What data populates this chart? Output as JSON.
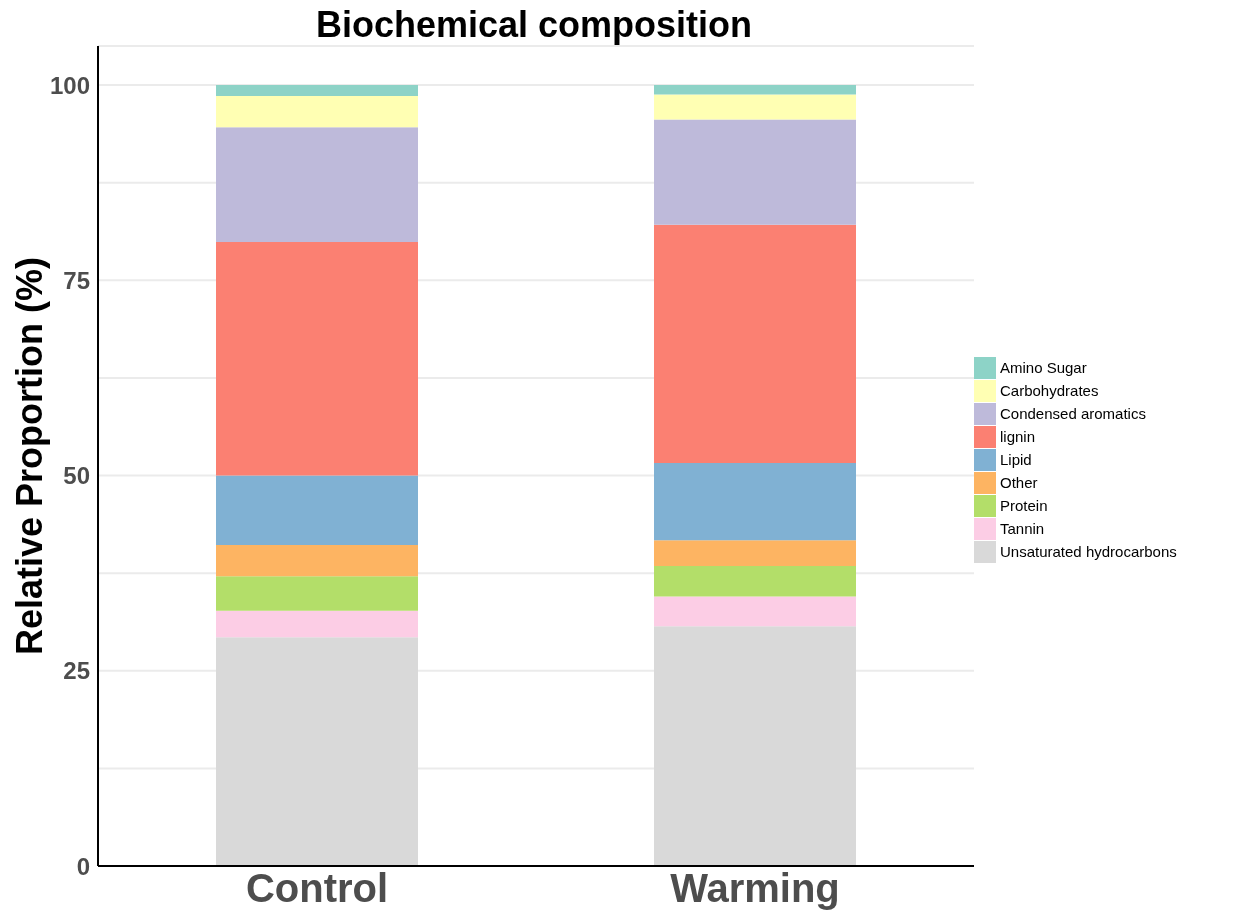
{
  "chart_data": {
    "type": "bar",
    "title": "Biochemical composition",
    "ylabel": "Relative Proportion (%)",
    "categories": [
      "Control",
      "Warming"
    ],
    "stacked": true,
    "series": [
      {
        "name": "Unsaturated hydrocarbons",
        "color": "#d9d9d9",
        "values": [
          29.3,
          30.7
        ]
      },
      {
        "name": "Tannin",
        "color": "#fccde5",
        "values": [
          3.4,
          3.8
        ]
      },
      {
        "name": "Protein",
        "color": "#b3de69",
        "values": [
          4.4,
          3.9
        ]
      },
      {
        "name": "Other",
        "color": "#fdb462",
        "values": [
          4.0,
          3.3
        ]
      },
      {
        "name": "Lipid",
        "color": "#80b1d3",
        "values": [
          8.9,
          9.9
        ]
      },
      {
        "name": "lignin",
        "color": "#fb8072",
        "values": [
          29.9,
          30.5
        ]
      },
      {
        "name": "Condensed aromatics",
        "color": "#bebada",
        "values": [
          14.7,
          13.5
        ]
      },
      {
        "name": "Carbohydrates",
        "color": "#ffffb3",
        "values": [
          4.0,
          3.2
        ]
      },
      {
        "name": "Amino Sugar",
        "color": "#8dd3c7",
        "values": [
          1.4,
          1.2
        ]
      }
    ],
    "ylim": [
      0,
      105
    ],
    "yticks": [
      0,
      {
        "value": 12.5,
        "label": null
      },
      25,
      {
        "value": 37.5,
        "label": null
      },
      50,
      {
        "value": 62.5,
        "label": null
      },
      75,
      {
        "value": 87.5,
        "label": null
      },
      100
    ],
    "grid": "y",
    "legend": "right"
  }
}
